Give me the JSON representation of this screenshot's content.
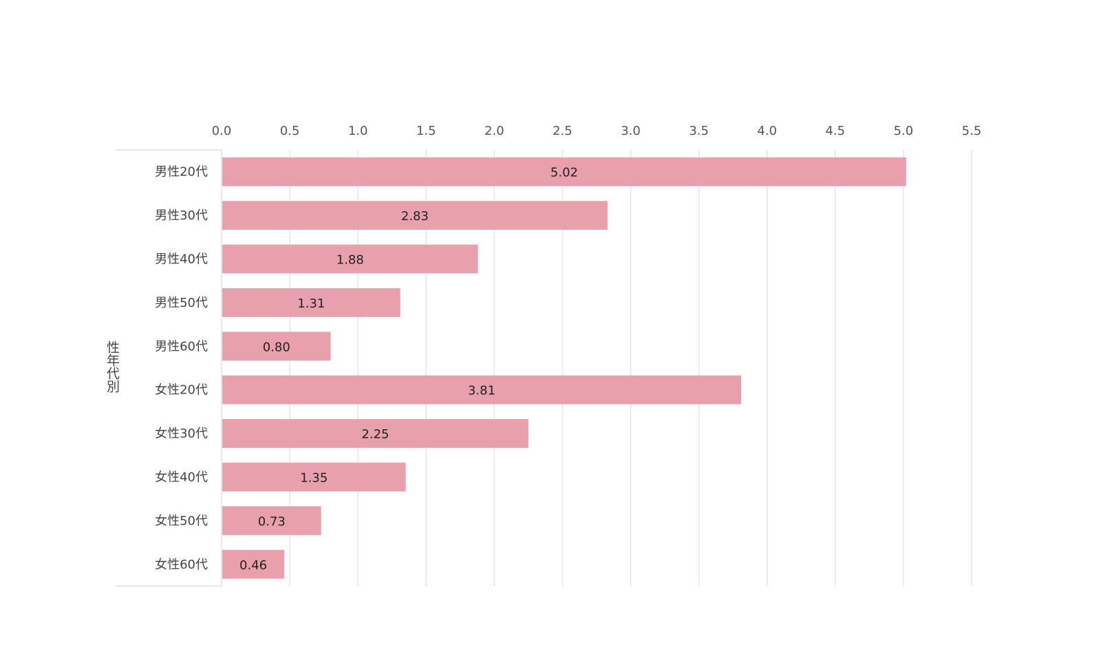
{
  "chart_data": {
    "type": "bar",
    "orientation": "horizontal",
    "title": "",
    "xlabel": "",
    "ylabel": "性年代別",
    "categories": [
      "男性20代",
      "男性30代",
      "男性40代",
      "男性50代",
      "男性60代",
      "女性20代",
      "女性30代",
      "女性40代",
      "女性50代",
      "女性60代"
    ],
    "values": [
      5.02,
      2.83,
      1.88,
      1.31,
      0.8,
      3.81,
      2.25,
      1.35,
      0.73,
      0.46
    ],
    "value_labels": [
      "5.02",
      "2.83",
      "1.88",
      "1.31",
      "0.80",
      "3.81",
      "2.25",
      "1.35",
      "0.73",
      "0.46"
    ],
    "xlim": [
      0,
      5.5
    ],
    "x_ticks": [
      "0.0",
      "0.5",
      "1.0",
      "1.5",
      "2.0",
      "2.5",
      "3.0",
      "3.5",
      "4.0",
      "4.5",
      "5.0",
      "5.5"
    ],
    "x_axis_position": "top",
    "grid": true,
    "legend": "none",
    "colors": {
      "bar": "#e8a0ac",
      "bar_label": "#222222",
      "tick_label": "#555555",
      "category_label": "#444444",
      "grid": "#e4e4e4",
      "axis_border": "#e8e8e8"
    }
  }
}
